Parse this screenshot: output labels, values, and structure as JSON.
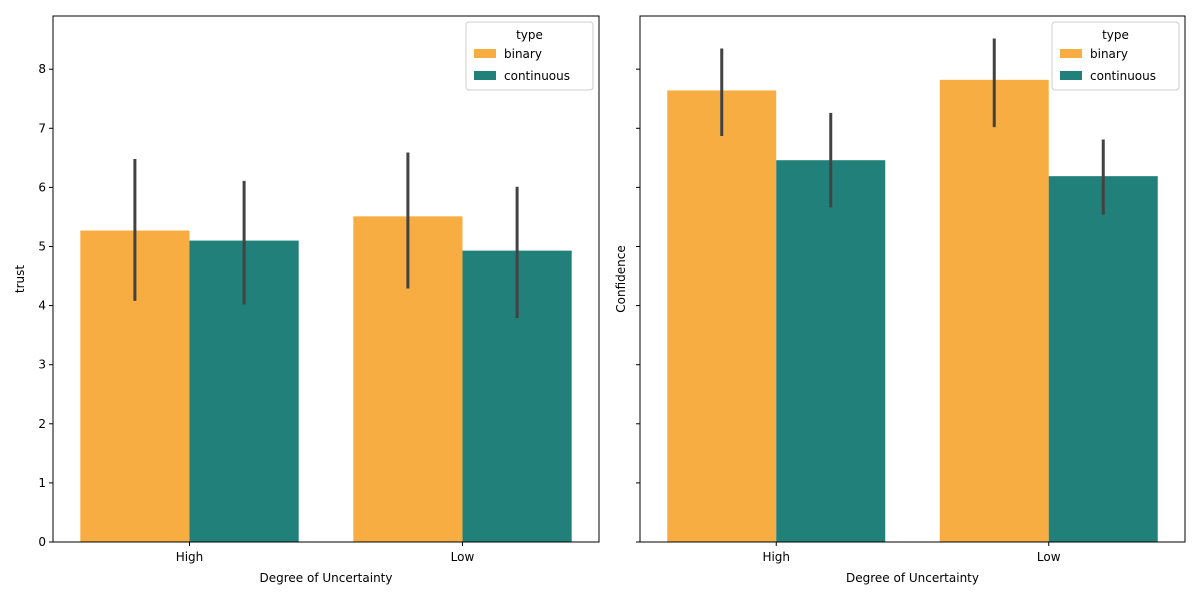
{
  "chart_data": [
    {
      "type": "bar",
      "title": "",
      "xlabel": "Degree of Uncertainty",
      "ylabel": "trust",
      "categories": [
        "High",
        "Low"
      ],
      "ylim": [
        0,
        8.9
      ],
      "yticks": [
        0,
        1,
        2,
        3,
        4,
        5,
        6,
        7,
        8
      ],
      "show_ytick_labels": true,
      "legend": {
        "title": "type",
        "placement": "top-right"
      },
      "series": [
        {
          "name": "binary",
          "color": "#f8ad42",
          "values": [
            5.27,
            5.51
          ],
          "ci_low": [
            4.08,
            4.29
          ],
          "ci_high": [
            6.48,
            6.59
          ]
        },
        {
          "name": "continuous",
          "color": "#21807a",
          "values": [
            5.1,
            4.93
          ],
          "ci_low": [
            4.02,
            3.79
          ],
          "ci_high": [
            6.11,
            6.01
          ]
        }
      ]
    },
    {
      "type": "bar",
      "title": "",
      "xlabel": "Degree of Uncertainty",
      "ylabel": "Confidence",
      "categories": [
        "High",
        "Low"
      ],
      "ylim": [
        0,
        8.9
      ],
      "yticks": [
        0,
        1,
        2,
        3,
        4,
        5,
        6,
        7,
        8
      ],
      "show_ytick_labels": false,
      "legend": {
        "title": "type",
        "placement": "top-right"
      },
      "series": [
        {
          "name": "binary",
          "color": "#f8ad42",
          "values": [
            7.64,
            7.82
          ],
          "ci_low": [
            6.87,
            7.02
          ],
          "ci_high": [
            8.35,
            8.52
          ]
        },
        {
          "name": "continuous",
          "color": "#21807a",
          "values": [
            6.46,
            6.19
          ],
          "ci_low": [
            5.66,
            5.54
          ],
          "ci_high": [
            7.26,
            6.81
          ]
        }
      ]
    }
  ]
}
